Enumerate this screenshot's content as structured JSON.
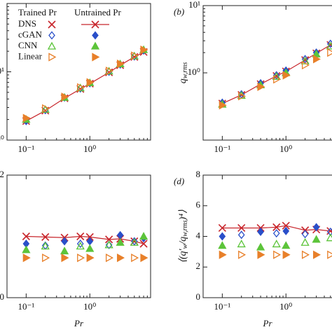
{
  "chart_data": [
    {
      "type": "scatter",
      "log_x": true,
      "log_y": true,
      "x": [
        0.1,
        0.2,
        0.4,
        0.71,
        1,
        2,
        3,
        5,
        7
      ],
      "trained": [
        false,
        true,
        false,
        true,
        false,
        true,
        false,
        true,
        false
      ],
      "xlim": [
        0.05,
        9
      ],
      "xticks": [
        {
          "value": 0.1,
          "label": "10⁻¹"
        },
        {
          "value": 1,
          "label": "10⁰"
        }
      ],
      "ylim": [
        1,
        100
      ],
      "yticks": [
        {
          "value": 1,
          "label": "10⁰"
        },
        {
          "value": 10,
          "label": "10¹"
        }
      ],
      "legend": {
        "corner": "upper left",
        "headers": [
          "Trained Pr",
          "Untrained Pr"
        ]
      },
      "series": [
        {
          "name": "DNS",
          "color": "#c8262c",
          "marker": "x",
          "line": true,
          "values": [
            1.9,
            2.7,
            4.1,
            5.6,
            6.7,
            9.8,
            12.5,
            16.5,
            19.5
          ]
        },
        {
          "name": "cGAN",
          "color": "#2a4fc9",
          "marker": "diamond",
          "values": [
            1.9,
            2.75,
            4.2,
            5.7,
            6.8,
            10,
            12.8,
            16.8,
            20.5
          ]
        },
        {
          "name": "CNN",
          "color": "#5cc43a",
          "marker": "triangle",
          "values": [
            2.0,
            2.8,
            4.2,
            5.8,
            6.9,
            10.2,
            13,
            17,
            21
          ]
        },
        {
          "name": "Linear",
          "color": "#e8802a",
          "marker": "triangle-right",
          "values": [
            2.1,
            2.9,
            4.3,
            5.9,
            7,
            10.3,
            13.1,
            17.2,
            21
          ]
        }
      ]
    },
    {
      "type": "scatter",
      "log_x": true,
      "log_y": true,
      "panel_label": "(b)",
      "x": [
        0.1,
        0.2,
        0.4,
        0.71,
        1,
        2,
        3,
        5,
        7
      ],
      "trained": [
        false,
        true,
        false,
        true,
        false,
        true,
        false,
        true,
        false
      ],
      "xlim": [
        0.05,
        9
      ],
      "xticks": [
        {
          "value": 0.1,
          "label": "10⁻¹"
        },
        {
          "value": 1,
          "label": "10⁰"
        }
      ],
      "ylim": [
        0.1,
        10
      ],
      "yticks": [
        {
          "value": 1,
          "label": "10⁰"
        },
        {
          "value": 10,
          "label": "10¹"
        }
      ],
      "ylabel_parts": [
        "q",
        "w,rms"
      ],
      "series": [
        {
          "name": "DNS",
          "color": "#c8262c",
          "marker": "x",
          "line": true,
          "values": [
            0.35,
            0.47,
            0.68,
            0.9,
            1.05,
            1.55,
            1.95,
            2.6,
            3.2
          ]
        },
        {
          "name": "cGAN",
          "color": "#2a4fc9",
          "marker": "diamond",
          "values": [
            0.36,
            0.48,
            0.7,
            0.92,
            1.08,
            1.6,
            2.0,
            2.7,
            3.3
          ]
        },
        {
          "name": "CNN",
          "color": "#5cc43a",
          "marker": "triangle",
          "values": [
            0.34,
            0.46,
            0.66,
            0.88,
            1.0,
            1.5,
            1.9,
            2.5,
            3.0
          ]
        },
        {
          "name": "Linear",
          "color": "#e8802a",
          "marker": "triangle-right",
          "values": [
            0.33,
            0.45,
            0.62,
            0.8,
            0.92,
            1.3,
            1.6,
            2.0,
            2.5
          ]
        }
      ]
    },
    {
      "type": "scatter",
      "log_x": true,
      "log_y": false,
      "x": [
        0.1,
        0.2,
        0.4,
        0.71,
        1,
        2,
        3,
        5,
        7
      ],
      "trained": [
        false,
        true,
        false,
        true,
        false,
        true,
        false,
        true,
        false
      ],
      "xlim": [
        0.05,
        9
      ],
      "xticks": [
        {
          "value": 0.1,
          "label": "10⁻¹"
        },
        {
          "value": 1,
          "label": "10⁰"
        }
      ],
      "ylim": [
        0,
        2
      ],
      "yticks": [
        0,
        2
      ],
      "xlabel": "Pr",
      "series": [
        {
          "name": "DNS",
          "color": "#c8262c",
          "marker": "x",
          "line": true,
          "values": [
            1.0,
            0.99,
            0.98,
            1.0,
            0.99,
            0.95,
            0.96,
            0.92,
            0.88
          ]
        },
        {
          "name": "cGAN",
          "color": "#2a4fc9",
          "marker": "diamond",
          "values": [
            0.88,
            0.85,
            0.92,
            0.88,
            0.92,
            0.86,
            1.02,
            0.92,
            0.97
          ]
        },
        {
          "name": "CNN",
          "color": "#5cc43a",
          "marker": "triangle",
          "values": [
            0.78,
            0.84,
            0.76,
            0.84,
            0.8,
            0.86,
            0.9,
            0.9,
            1.0
          ]
        },
        {
          "name": "Linear",
          "color": "#e8802a",
          "marker": "triangle-right",
          "values": [
            0.65,
            0.65,
            0.65,
            0.65,
            0.65,
            0.65,
            0.65,
            0.65,
            0.65
          ]
        }
      ]
    },
    {
      "type": "scatter",
      "log_x": true,
      "log_y": false,
      "panel_label": "(d)",
      "x": [
        0.1,
        0.2,
        0.4,
        0.71,
        1,
        2,
        3,
        5,
        7
      ],
      "trained": [
        false,
        true,
        false,
        true,
        false,
        true,
        false,
        true,
        false
      ],
      "xlim": [
        0.05,
        9
      ],
      "xticks": [
        {
          "value": 0.1,
          "label": "10⁻¹"
        },
        {
          "value": 1,
          "label": "10⁰"
        }
      ],
      "ylim": [
        0,
        8
      ],
      "yticks": [
        0,
        2,
        4,
        6,
        8
      ],
      "xlabel": "Pr",
      "ylabel_parts": [
        "⟨(q′",
        "w",
        "/q",
        "w,rms",
        ")⁴⟩"
      ],
      "series": [
        {
          "name": "DNS",
          "color": "#c8262c",
          "marker": "x",
          "line": true,
          "values": [
            4.55,
            4.55,
            4.55,
            4.6,
            4.7,
            4.4,
            4.45,
            4.35,
            4.25
          ]
        },
        {
          "name": "cGAN",
          "color": "#2a4fc9",
          "marker": "diamond",
          "values": [
            4.0,
            4.1,
            4.3,
            4.2,
            4.35,
            4.15,
            4.6,
            4.3,
            4.5
          ]
        },
        {
          "name": "CNN",
          "color": "#5cc43a",
          "marker": "triangle",
          "values": [
            3.4,
            3.5,
            3.3,
            3.5,
            3.4,
            3.6,
            3.8,
            3.9,
            4.1
          ]
        },
        {
          "name": "Linear",
          "color": "#e8802a",
          "marker": "triangle-right",
          "values": [
            2.8,
            2.8,
            2.8,
            2.8,
            2.8,
            2.8,
            2.8,
            2.8,
            2.8
          ]
        }
      ]
    }
  ]
}
